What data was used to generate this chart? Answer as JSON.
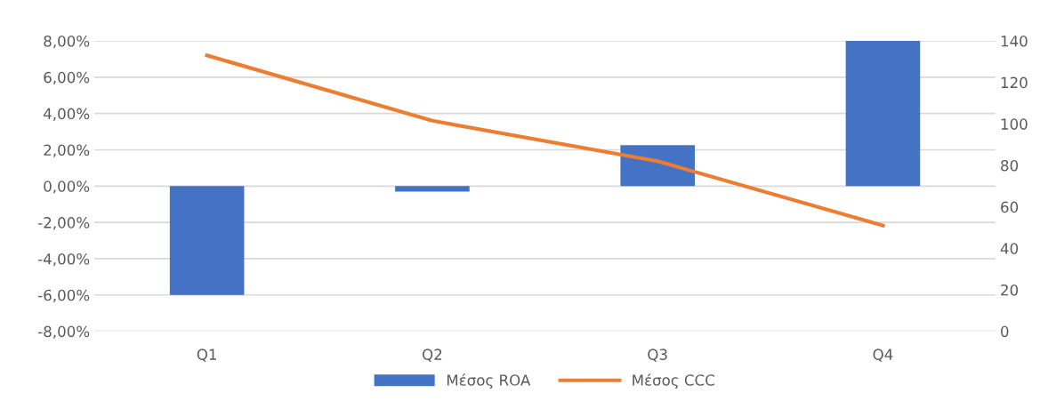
{
  "chart_data": {
    "type": "bar",
    "categories": [
      "Q1",
      "Q2",
      "Q3",
      "Q4"
    ],
    "series": [
      {
        "name": "Μέσος ROA",
        "color": "#4472c4",
        "values": [
          -6.0,
          -0.3,
          2.25,
          8.0
        ]
      },
      {
        "name": "Μέσος CCC",
        "color": "#ed7d31",
        "type": "line",
        "axis": "y2",
        "values": [
          133,
          101.5,
          82,
          51
        ]
      }
    ],
    "ylim": [
      -8,
      8
    ],
    "yticks": [
      {
        "value": -8,
        "label": "-8,00%"
      },
      {
        "value": -6,
        "label": "-6,00%"
      },
      {
        "value": -4,
        "label": "-4,00%"
      },
      {
        "value": -2,
        "label": "-2,00%"
      },
      {
        "value": 0,
        "label": "0,00%"
      },
      {
        "value": 2,
        "label": "2,00%"
      },
      {
        "value": 4,
        "label": "4,00%"
      },
      {
        "value": 6,
        "label": "6,00%"
      },
      {
        "value": 8,
        "label": "8,00%"
      }
    ],
    "y2lim": [
      0,
      140
    ],
    "y2ticks": [
      0,
      20,
      40,
      60,
      80,
      100,
      120,
      140
    ],
    "grid": "y",
    "legend": "bottom"
  }
}
